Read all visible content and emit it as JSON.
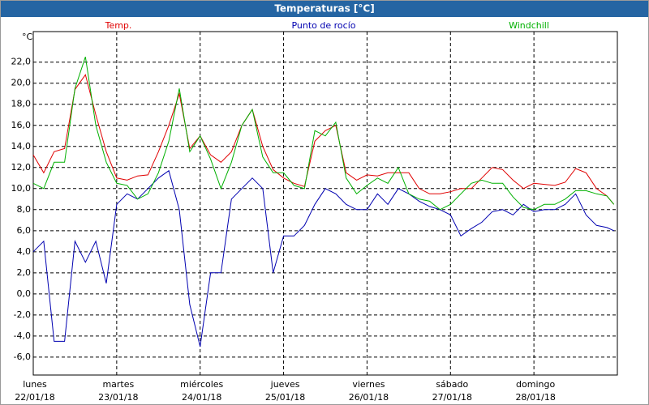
{
  "chart_data": {
    "type": "line",
    "title": "Temperaturas [°C]",
    "y_unit": "°C",
    "x": [
      0,
      3,
      6,
      9,
      12,
      15,
      18,
      21,
      24,
      27,
      30,
      33,
      36,
      39,
      42,
      45,
      48,
      51,
      54,
      57,
      60,
      63,
      66,
      69,
      72,
      75,
      78,
      81,
      84,
      87,
      90,
      93,
      96,
      99,
      102,
      105,
      108,
      111,
      114,
      117,
      120,
      123,
      126,
      129,
      132,
      135,
      138,
      141,
      144,
      147,
      150,
      153,
      156,
      159,
      162,
      165,
      167
    ],
    "xlim": [
      0,
      168
    ],
    "xticks": [
      {
        "value": 0,
        "label": "lunes"
      },
      {
        "value": 24,
        "label": "martes"
      },
      {
        "value": 48,
        "label": "miércoles"
      },
      {
        "value": 72,
        "label": "jueves"
      },
      {
        "value": 96,
        "label": "viernes"
      },
      {
        "value": 120,
        "label": "sábado"
      },
      {
        "value": 144,
        "label": "domingo"
      }
    ],
    "xtick_dates": [
      "22/01/18",
      "23/01/18",
      "24/01/18",
      "25/01/18",
      "26/01/18",
      "27/01/18",
      "28/01/18"
    ],
    "ylim": [
      -7.7,
      24.9
    ],
    "yticks": [
      {
        "value": 22,
        "label": "22,0"
      },
      {
        "value": 20,
        "label": "20,0"
      },
      {
        "value": 18,
        "label": "18,0"
      },
      {
        "value": 16,
        "label": "16,0"
      },
      {
        "value": 14,
        "label": "14,0"
      },
      {
        "value": 12,
        "label": "12,0"
      },
      {
        "value": 10,
        "label": "10,0"
      },
      {
        "value": 8,
        "label": "8,0"
      },
      {
        "value": 6,
        "label": "6,0"
      },
      {
        "value": 4,
        "label": "4,0"
      },
      {
        "value": 2,
        "label": "2,0"
      },
      {
        "value": 0,
        "label": "0,0"
      },
      {
        "value": -2,
        "label": "-2,0"
      },
      {
        "value": -4,
        "label": "-4,0"
      },
      {
        "value": -6,
        "label": "-6,0"
      }
    ],
    "grid": true,
    "series": [
      {
        "name": "Temp.",
        "color": "#e00000",
        "values": [
          13.2,
          11.5,
          13.5,
          13.8,
          19.4,
          20.8,
          17,
          13.5,
          11,
          10.8,
          11.2,
          11.3,
          13.5,
          16,
          19,
          13.8,
          15,
          13.2,
          12.5,
          13.5,
          16,
          17.5,
          14,
          11.8,
          11,
          10.5,
          10.2,
          14.5,
          15.5,
          16,
          11.5,
          10.8,
          11.3,
          11.2,
          11.5,
          11.5,
          11.5,
          10,
          9.5,
          9.5,
          9.7,
          10,
          10,
          11,
          12,
          11.8,
          10.8,
          10,
          10.5,
          10.4,
          10.3,
          10.6,
          11.9,
          11.5,
          10,
          9.3,
          8.5
        ]
      },
      {
        "name": "Punto de rocío",
        "color": "#0000b0",
        "values": [
          4,
          5,
          -4.5,
          -4.5,
          5,
          3,
          5,
          1,
          8.5,
          9.5,
          9,
          10,
          11,
          11.7,
          8,
          -1,
          -5,
          2,
          2,
          9,
          10,
          11,
          10,
          2,
          5.5,
          5.5,
          6.5,
          8.5,
          10,
          9.5,
          8.5,
          8,
          8,
          9.5,
          8.5,
          10,
          9.5,
          8.8,
          8.3,
          8,
          7.5,
          5.5,
          6.2,
          6.8,
          7.8,
          8,
          7.5,
          8.5,
          7.8,
          8,
          8,
          8.5,
          9.5,
          7.5,
          6.5,
          6.3,
          6
        ]
      },
      {
        "name": "Windchill",
        "color": "#00b000",
        "values": [
          10.5,
          10,
          12.5,
          12.5,
          19.5,
          22.5,
          16,
          12.5,
          10.5,
          10.3,
          9,
          9.5,
          11.5,
          14.5,
          19.5,
          13.5,
          15,
          12.8,
          10,
          12.5,
          16,
          17.5,
          13,
          11.5,
          11.5,
          10.3,
          10,
          15.5,
          15,
          16.3,
          11,
          9.5,
          10.3,
          11,
          10.5,
          12,
          9.5,
          9,
          8.8,
          8,
          8.5,
          9.5,
          10.5,
          10.8,
          10.5,
          10.5,
          9.2,
          8.2,
          8,
          8.5,
          8.5,
          9,
          9.8,
          9.8,
          9.5,
          9.3,
          8.5
        ]
      }
    ]
  }
}
